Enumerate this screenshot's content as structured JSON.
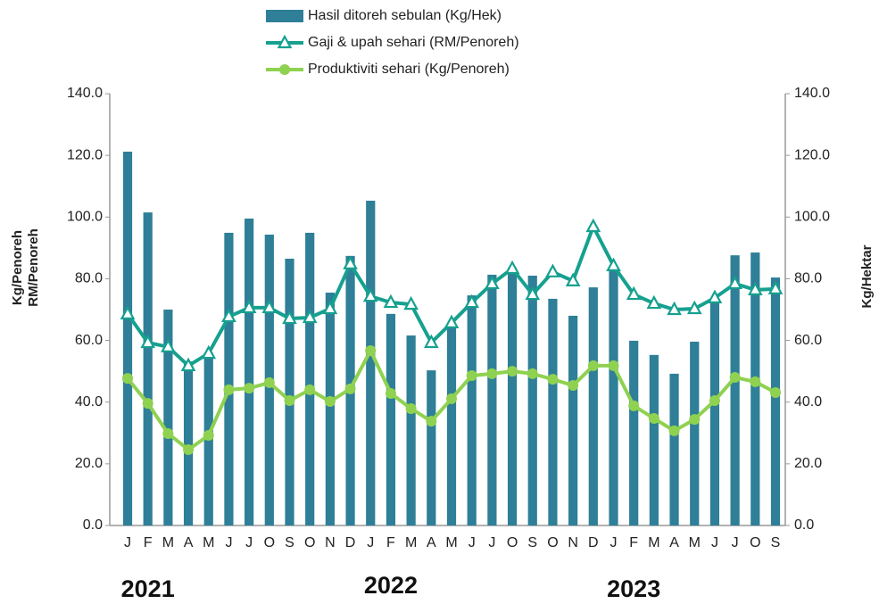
{
  "chart_data": {
    "type": "bar",
    "categories": [
      "J",
      "F",
      "M",
      "A",
      "M",
      "J",
      "J",
      "O",
      "S",
      "O",
      "N",
      "D",
      "J",
      "F",
      "M",
      "A",
      "M",
      "J",
      "J",
      "O",
      "S",
      "O",
      "N",
      "D",
      "J",
      "F",
      "M",
      "A",
      "M",
      "J",
      "J",
      "O",
      "S"
    ],
    "series": [
      {
        "name": "Hasil ditoreh sebulan (Kg/Hek)",
        "type": "bar",
        "axis": "y2",
        "color": "#2e7f97",
        "values": [
          121.2,
          101.5,
          70,
          53.2,
          56,
          94.9,
          99.5,
          94.3,
          86.5,
          94.9,
          75.5,
          87.4,
          105.3,
          68.6,
          61.6,
          50.3,
          65,
          74.6,
          81.3,
          83.6,
          81,
          73.5,
          68,
          77.2,
          83.5,
          59.9,
          55.3,
          49.2,
          59.6,
          73.5,
          87.6,
          88.5,
          80.4
        ]
      },
      {
        "name": "Gaji & upah sehari (RM/Penoreh)",
        "type": "line",
        "marker": "triangle",
        "color": "#16a08f",
        "values": [
          68.6,
          59.3,
          57.9,
          51.8,
          55.8,
          67.7,
          70.6,
          70.6,
          67.1,
          67.4,
          70.3,
          84.8,
          74.3,
          72.3,
          71.7,
          59.3,
          65.7,
          72.3,
          78.4,
          83.3,
          74.9,
          82.2,
          79.3,
          96.9,
          84.2,
          74.9,
          72,
          70,
          70.3,
          73.8,
          78.4,
          76.4,
          76.7
        ]
      },
      {
        "name": "Produktiviti sehari (Kg/Penoreh)",
        "type": "line",
        "marker": "circle",
        "color": "#8fd150",
        "values": [
          47.7,
          39.6,
          29.8,
          24.6,
          29.2,
          44,
          44.5,
          46.3,
          40.5,
          44,
          40.2,
          44.3,
          56.7,
          42.8,
          37.9,
          33.8,
          41.1,
          48.6,
          49.2,
          50,
          49.2,
          47.4,
          45.4,
          51.8,
          51.8,
          38.8,
          34.7,
          30.7,
          34.4,
          40.5,
          48,
          46.6,
          43.1
        ]
      }
    ],
    "ylabel": [
      "Kg/Penoreh",
      "RM/Penoreh"
    ],
    "y2label": "Kg/Hektar",
    "ylim": [
      0,
      140
    ],
    "yticks": [
      {
        "value": 0,
        "label": "0.0"
      },
      {
        "value": 20,
        "label": "20.0"
      },
      {
        "value": 40,
        "label": "40.0"
      },
      {
        "value": 60,
        "label": "60.0"
      },
      {
        "value": 80,
        "label": "80.0"
      },
      {
        "value": 100,
        "label": "100.0"
      },
      {
        "value": 120,
        "label": "120.0"
      },
      {
        "value": 140,
        "label": "140.0"
      }
    ],
    "y2lim": [
      0,
      140
    ],
    "y2ticks": [
      {
        "value": 0,
        "label": "0.0"
      },
      {
        "value": 20,
        "label": "20.0"
      },
      {
        "value": 40,
        "label": "40.0"
      },
      {
        "value": 60,
        "label": "60.0"
      },
      {
        "value": 80,
        "label": "80.0"
      },
      {
        "value": 100,
        "label": "100.0"
      },
      {
        "value": 120,
        "label": "120.0"
      },
      {
        "value": 140,
        "label": "140.0"
      }
    ],
    "annotations": [
      "2021",
      "2022",
      "2023"
    ],
    "legend": "top"
  }
}
